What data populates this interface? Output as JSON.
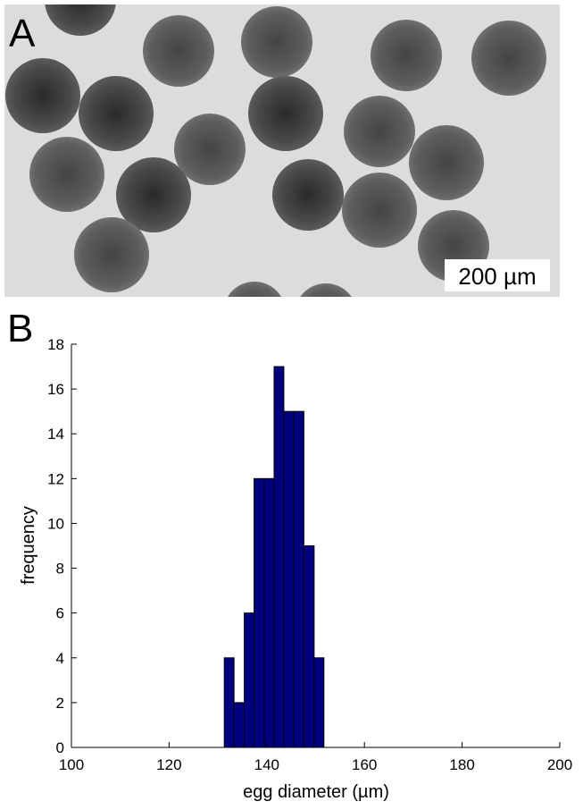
{
  "figure": {
    "panel_a_label": "A",
    "scale_bar_label": "200 µm",
    "panel_b_label": "B"
  },
  "chart_data": {
    "type": "histogram",
    "bins": [
      131.3,
      133.3,
      135.4,
      137.4,
      139.5,
      141.5,
      143.5,
      145.6,
      147.6,
      149.7,
      151.7
    ],
    "counts": [
      4,
      2,
      6,
      12,
      12,
      17,
      15,
      15,
      9,
      4
    ],
    "color": "#000080",
    "x_label": "egg diameter (µm)",
    "y_label": "frequency",
    "xlim": [
      100,
      200
    ],
    "xticks": [
      100,
      120,
      140,
      160,
      180,
      200
    ],
    "ylim": [
      0,
      18
    ],
    "yticks": [
      0,
      2,
      4,
      6,
      8,
      10,
      12,
      14,
      16,
      18
    ]
  }
}
